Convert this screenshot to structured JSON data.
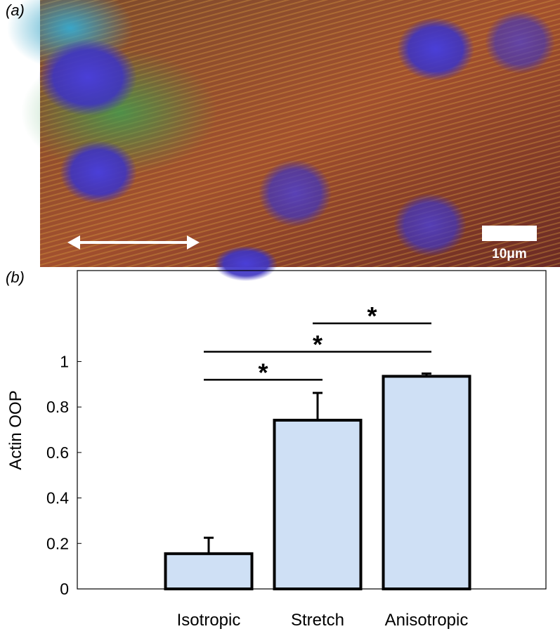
{
  "panel_a": {
    "label": "(a)",
    "scale_bar": "10μm"
  },
  "panel_b": {
    "label": "(b)"
  },
  "chart_data": {
    "type": "bar",
    "y_label": "Actin OOP",
    "categories": [
      "Isotropic",
      "Stretch",
      "Anisotropic"
    ],
    "values": [
      0.155,
      0.742,
      0.935
    ],
    "errors": [
      0.07,
      0.12,
      0.012
    ],
    "color": "#cfe0f5",
    "ylim": [
      0,
      1.4
    ],
    "yticks": [
      0,
      0.2,
      0.4,
      0.6,
      0.8,
      1
    ],
    "significance": [
      {
        "from": 0,
        "to": 1,
        "y": 0.92,
        "label": "*"
      },
      {
        "from": 0,
        "to": 2,
        "y": 1.043,
        "label": "*"
      },
      {
        "from": 1,
        "to": 2,
        "y": 1.168,
        "label": "*"
      }
    ]
  }
}
